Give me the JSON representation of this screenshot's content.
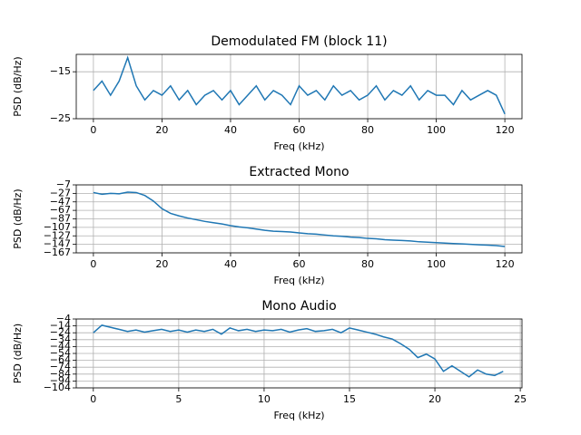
{
  "chart_data": [
    {
      "type": "line",
      "title": "Demodulated FM (block 11)",
      "xlabel": "Freq (kHz)",
      "ylabel": "PSD (dB/Hz)",
      "x": [
        0,
        2.5,
        5,
        7.5,
        10,
        12.5,
        15,
        17.5,
        20,
        22.5,
        25,
        27.5,
        30,
        32.5,
        35,
        37.5,
        40,
        42.5,
        45,
        47.5,
        50,
        52.5,
        55,
        57.5,
        60,
        62.5,
        65,
        67.5,
        70,
        72.5,
        75,
        77.5,
        80,
        82.5,
        85,
        87.5,
        90,
        92.5,
        95,
        97.5,
        100,
        102.5,
        105,
        107.5,
        110,
        112.5,
        115,
        117.5,
        120
      ],
      "values": [
        -19,
        -17,
        -20,
        -17,
        -12,
        -18,
        -21,
        -19,
        -20,
        -18,
        -21,
        -19,
        -22,
        -20,
        -19,
        -21,
        -19,
        -22,
        -20,
        -18,
        -21,
        -19,
        -20,
        -22,
        -18,
        -20,
        -19,
        -21,
        -18,
        -20,
        -19,
        -21,
        -20,
        -18,
        -21,
        -19,
        -20,
        -18,
        -21,
        -19,
        -20,
        -20,
        -22,
        -19,
        -21,
        -20,
        -19,
        -20,
        -24
      ],
      "color": "#1f77b4",
      "xlim": [
        -5,
        125
      ],
      "ylim": [
        -25,
        -11.3
      ],
      "xticks": [
        0,
        20,
        40,
        60,
        80,
        100,
        120
      ],
      "yticks": [
        {
          "value": -15,
          "label": "−15"
        },
        {
          "value": -25,
          "label": "−25"
        }
      ],
      "grid": true
    },
    {
      "type": "line",
      "title": "Extracted Mono",
      "xlabel": "Freq (kHz)",
      "ylabel": "PSD (dB/Hz)",
      "x": [
        0,
        2.5,
        5,
        7.5,
        10,
        12.5,
        15,
        17.5,
        20,
        22.5,
        25,
        27.5,
        30,
        32.5,
        35,
        37.5,
        40,
        42.5,
        45,
        47.5,
        50,
        52.5,
        55,
        57.5,
        60,
        62.5,
        65,
        67.5,
        70,
        72.5,
        75,
        77.5,
        80,
        82.5,
        85,
        87.5,
        90,
        92.5,
        95,
        97.5,
        100,
        102.5,
        105,
        107.5,
        110,
        112.5,
        115,
        117.5,
        120
      ],
      "values": [
        -25,
        -29,
        -27,
        -28,
        -24,
        -25,
        -32,
        -45,
        -63,
        -74,
        -80,
        -85,
        -89,
        -93,
        -96,
        -99,
        -103,
        -106,
        -108,
        -111,
        -114,
        -116,
        -117,
        -118,
        -120,
        -122,
        -123,
        -125,
        -127,
        -128,
        -130,
        -131,
        -133,
        -134,
        -136,
        -137,
        -138,
        -139,
        -141,
        -142,
        -143,
        -144,
        -145,
        -146,
        -147,
        -148,
        -149,
        -150,
        -152
      ],
      "color": "#1f77b4",
      "xlim": [
        -5,
        125
      ],
      "ylim": [
        -167,
        -7
      ],
      "xticks": [
        0,
        20,
        40,
        60,
        80,
        100,
        120
      ],
      "yticks": [
        {
          "value": -7,
          "label": "−7"
        },
        {
          "value": -27,
          "label": "−27"
        },
        {
          "value": -47,
          "label": "−47"
        },
        {
          "value": -67,
          "label": "−67"
        },
        {
          "value": -87,
          "label": "−87"
        },
        {
          "value": -107,
          "label": "−107"
        },
        {
          "value": -127,
          "label": "−127"
        },
        {
          "value": -147,
          "label": "−147"
        },
        {
          "value": -167,
          "label": "−167"
        }
      ],
      "grid": true
    },
    {
      "type": "line",
      "title": "Mono Audio",
      "xlabel": "Freq (kHz)",
      "ylabel": "PSD (dB/Hz)",
      "x": [
        0,
        0.5,
        1,
        1.5,
        2,
        2.5,
        3,
        3.5,
        4,
        4.5,
        5,
        5.5,
        6,
        6.5,
        7,
        7.5,
        8,
        8.5,
        9,
        9.5,
        10,
        10.5,
        11,
        11.5,
        12,
        12.5,
        13,
        13.5,
        14,
        14.5,
        15,
        15.5,
        16,
        16.5,
        17,
        17.5,
        18,
        18.5,
        19,
        19.5,
        20,
        20.5,
        21,
        21.5,
        22,
        22.5,
        23,
        23.5,
        24
      ],
      "values": [
        -24,
        -13,
        -16,
        -19,
        -22,
        -20,
        -23,
        -21,
        -19,
        -22,
        -20,
        -23,
        -20,
        -22,
        -19,
        -26,
        -17,
        -21,
        -19,
        -22,
        -20,
        -21,
        -19,
        -23,
        -20,
        -18,
        -22,
        -21,
        -19,
        -24,
        -17,
        -20,
        -23,
        -26,
        -30,
        -33,
        -40,
        -48,
        -60,
        -55,
        -62,
        -80,
        -72,
        -80,
        -88,
        -78,
        -84,
        -86,
        -80
      ],
      "color": "#1f77b4",
      "xlim": [
        -1,
        25.1
      ],
      "ylim": [
        -104,
        -4
      ],
      "xticks": [
        0,
        5,
        10,
        15,
        20,
        25
      ],
      "yticks": [
        {
          "value": -4,
          "label": "−4"
        },
        {
          "value": -14,
          "label": "−14"
        },
        {
          "value": -24,
          "label": "−24"
        },
        {
          "value": -34,
          "label": "−34"
        },
        {
          "value": -44,
          "label": "−44"
        },
        {
          "value": -54,
          "label": "−54"
        },
        {
          "value": -64,
          "label": "−64"
        },
        {
          "value": -74,
          "label": "−74"
        },
        {
          "value": -84,
          "label": "−84"
        },
        {
          "value": -94,
          "label": "−94"
        },
        {
          "value": -104,
          "label": "−104"
        }
      ],
      "grid": true
    }
  ]
}
